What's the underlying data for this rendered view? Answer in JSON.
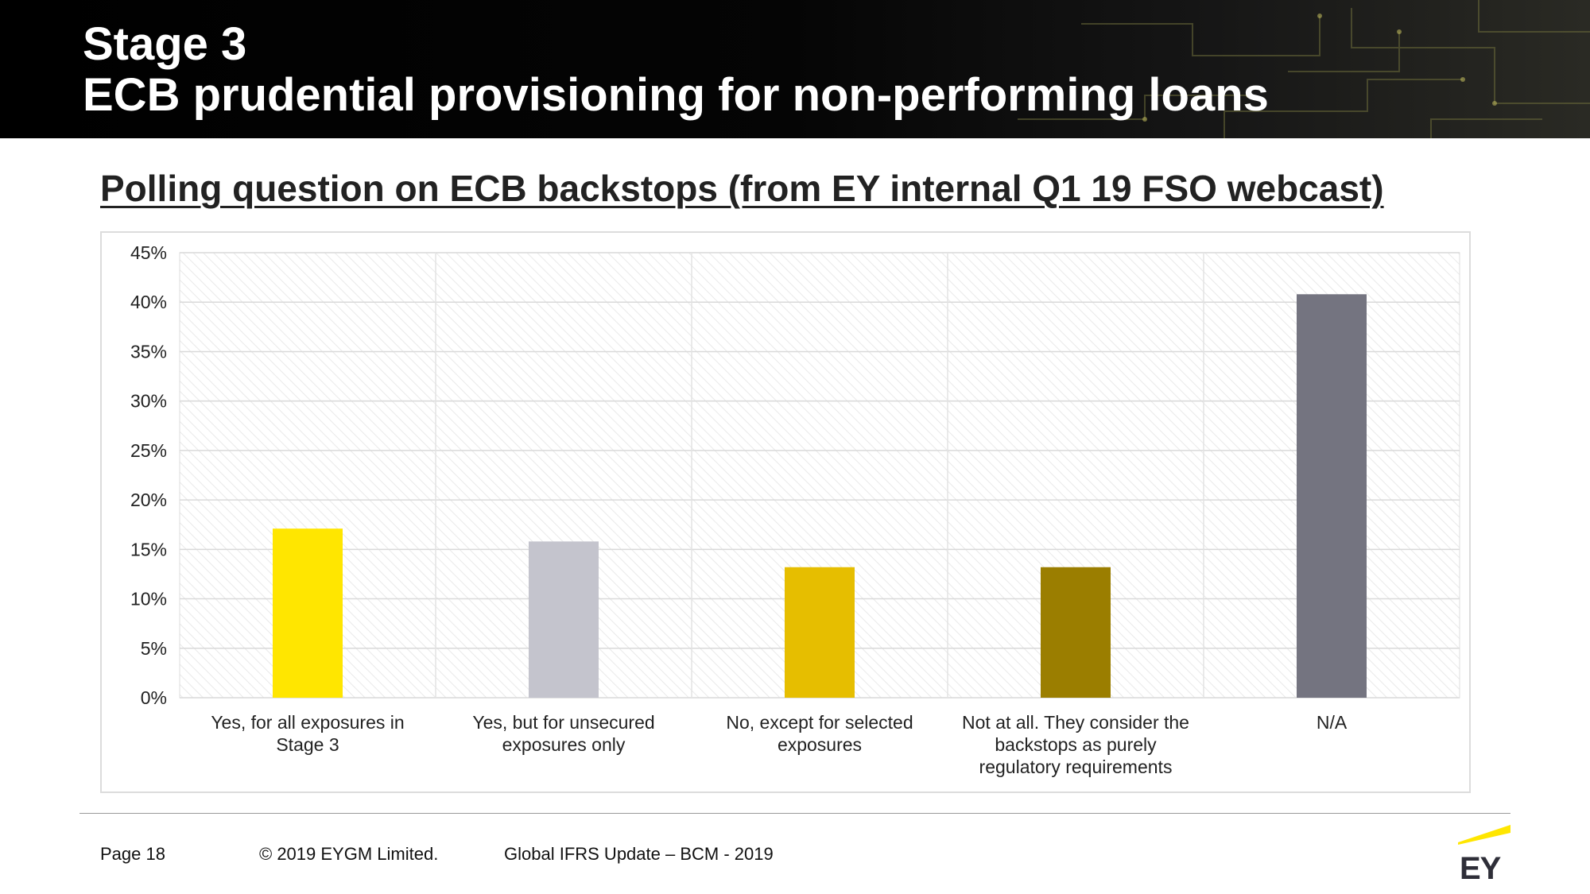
{
  "slide": {
    "title_line1": "Stage 3",
    "title_line2": "ECB prudential provisioning for non-performing loans",
    "subtitle": "Polling question on ECB backstops  (from EY internal Q1 19 FSO webcast)"
  },
  "footer": {
    "page": "Page 18",
    "copyright": "© 2019 EYGM Limited.",
    "event": "Global IFRS Update – BCM - 2019"
  },
  "logo": {
    "text": "EY",
    "accent_color": "#FFE600"
  },
  "chart_data": {
    "type": "bar",
    "categories": [
      [
        "Yes, for all exposures in",
        "Stage 3"
      ],
      [
        "Yes, but for unsecured",
        "exposures only"
      ],
      [
        "No, except for selected",
        "exposures"
      ],
      [
        "Not at all. They consider the",
        "backstops as purely",
        "regulatory requirements"
      ],
      [
        "N/A"
      ]
    ],
    "values": [
      0.171,
      0.158,
      0.132,
      0.132,
      0.408
    ],
    "colors": [
      "#FFE600",
      "#C4C4CD",
      "#E6BE00",
      "#9B7E00",
      "#747480"
    ],
    "ylim": [
      0,
      0.45
    ],
    "yticks": [
      "0%",
      "5%",
      "10%",
      "15%",
      "20%",
      "25%",
      "30%",
      "35%",
      "40%",
      "45%"
    ],
    "grid": true,
    "legend": "none",
    "xlabel": "",
    "ylabel": ""
  }
}
